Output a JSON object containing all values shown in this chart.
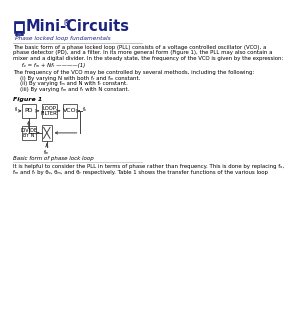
{
  "title": "Mini-Circuits",
  "subtitle": "Phase locked loop fundamentals",
  "logo_color": "#1a237e",
  "body_text_1a": "The basic form of a phase locked loop (PLL) consists of a voltage controlled oscillator (VCO), a",
  "body_text_1b": "phase detector (PD), and a filter. In its more general form (Figure 1), the PLL may also contain a",
  "body_text_1c": "mixer and a digital divider. In the steady state, the frequency of the VCO is given by the expression:",
  "equation": "     fₒ = fₘ + Nfᵣ ————(1)",
  "body_text_2": "The frequency of the VCO may be controlled by several methods, including the following:",
  "methods": [
    "    (i) By varying N with both fᵣ and fₘ constant.",
    "    (ii) By varying fₘ and N with fᵣ constant.",
    "    (iii) By varying fₘ and fᵣ with N constant."
  ],
  "figure_label": "Figure 1",
  "caption": "Basic form of phase lock loop",
  "body_text_3a": "It is helpful to consider the PLL in terms of phase rather than frequency. This is done by replacing fₒ,",
  "body_text_3b": "fₘ and fᵣ by θₒ, θₘ, and θᵣ respectively. Table 1 shows the transfer functions of the various loop",
  "background": "#ffffff",
  "text_color": "#000000",
  "box_color": "#444444",
  "arrow_color": "#444444",
  "subtitle_color": "#1a237e",
  "reg_color": "#1a237e",
  "fi_label": "fᵣ",
  "fo_label": "fₒ",
  "fm_label": "fₘ",
  "box_labels": [
    "PD",
    "LOOP\nFILTER",
    "VCO",
    "DIVIDE\nBY N"
  ]
}
